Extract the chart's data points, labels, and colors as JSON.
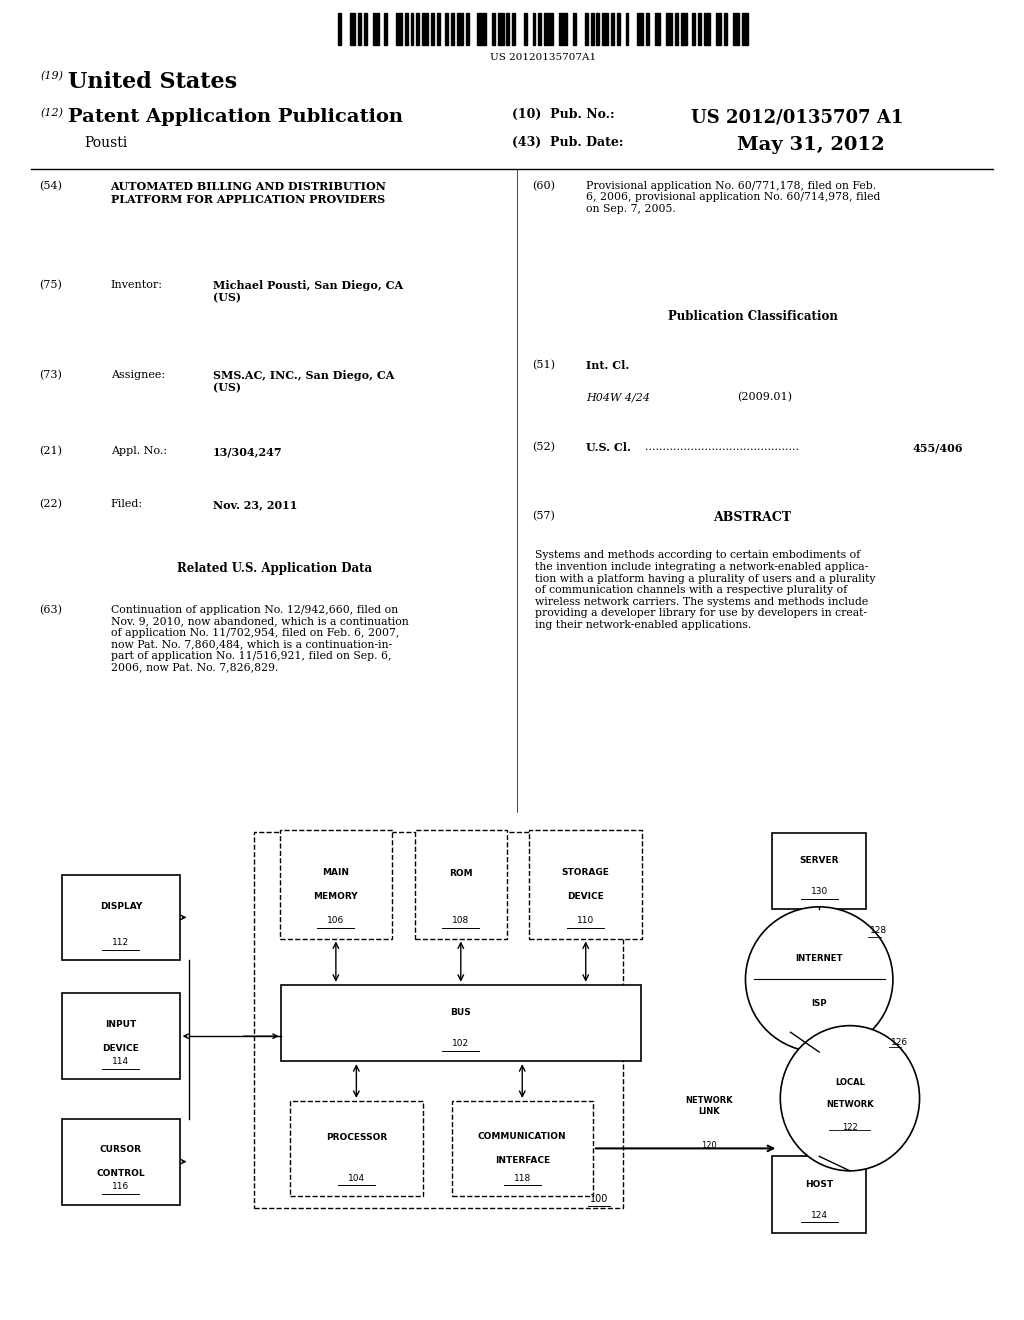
{
  "bg_color": "#ffffff",
  "barcode_text": "US 20120135707A1",
  "title_19": "(19)",
  "title_19_text": "United States",
  "title_12": "(12)",
  "title_12_text": "Patent Application Publication",
  "author": "Pousti",
  "pub_no_label": "(10)  Pub. No.:",
  "pub_no": "US 2012/0135707 A1",
  "pub_date_label": "(43)  Pub. Date:",
  "pub_date": "May 31, 2012",
  "field54_label": "(54)",
  "field54_text": "AUTOMATED BILLING AND DISTRIBUTION\nPLATFORM FOR APPLICATION PROVIDERS",
  "field60_label": "(60)",
  "field60_text": "Provisional application No. 60/771,178, filed on Feb.\n6, 2006, provisional application No. 60/714,978, filed\non Sep. 7, 2005.",
  "field75_label": "(75)",
  "field75_key": "Inventor:",
  "field75_val": "Michael Pousti, San Diego, CA\n(US)",
  "pub_class_header": "Publication Classification",
  "field51_label": "(51)",
  "field51_key": "Int. Cl.",
  "field51_val": "H04W 4/24",
  "field51_year": "(2009.01)",
  "field52_label": "(52)",
  "field52_key": "U.S. Cl. ",
  "field52_val": "455/406",
  "field73_label": "(73)",
  "field73_key": "Assignee:",
  "field73_val": "SMS.AC, INC., San Diego, CA\n(US)",
  "field21_label": "(21)",
  "field21_key": "Appl. No.:",
  "field21_val": "13/304,247",
  "field22_label": "(22)",
  "field22_key": "Filed:",
  "field22_val": "Nov. 23, 2011",
  "related_header": "Related U.S. Application Data",
  "field63_label": "(63)",
  "field63_text": "Continuation of application No. 12/942,660, filed on\nNov. 9, 2010, now abandoned, which is a continuation\nof application No. 11/702,954, filed on Feb. 6, 2007,\nnow Pat. No. 7,860,484, which is a continuation-in-\npart of application No. 11/516,921, filed on Sep. 6,\n2006, now Pat. No. 7,826,829.",
  "field57_label": "(57)",
  "field57_header": "ABSTRACT",
  "field57_text": "Systems and methods according to certain embodiments of\nthe invention include integrating a network-enabled applica-\ntion with a platform having a plurality of users and a plurality\nof communication channels with a respective plurality of\nwireless network carriers. The systems and methods include\nproviding a developer library for use by developers in creat-\ning their network-enabled applications."
}
